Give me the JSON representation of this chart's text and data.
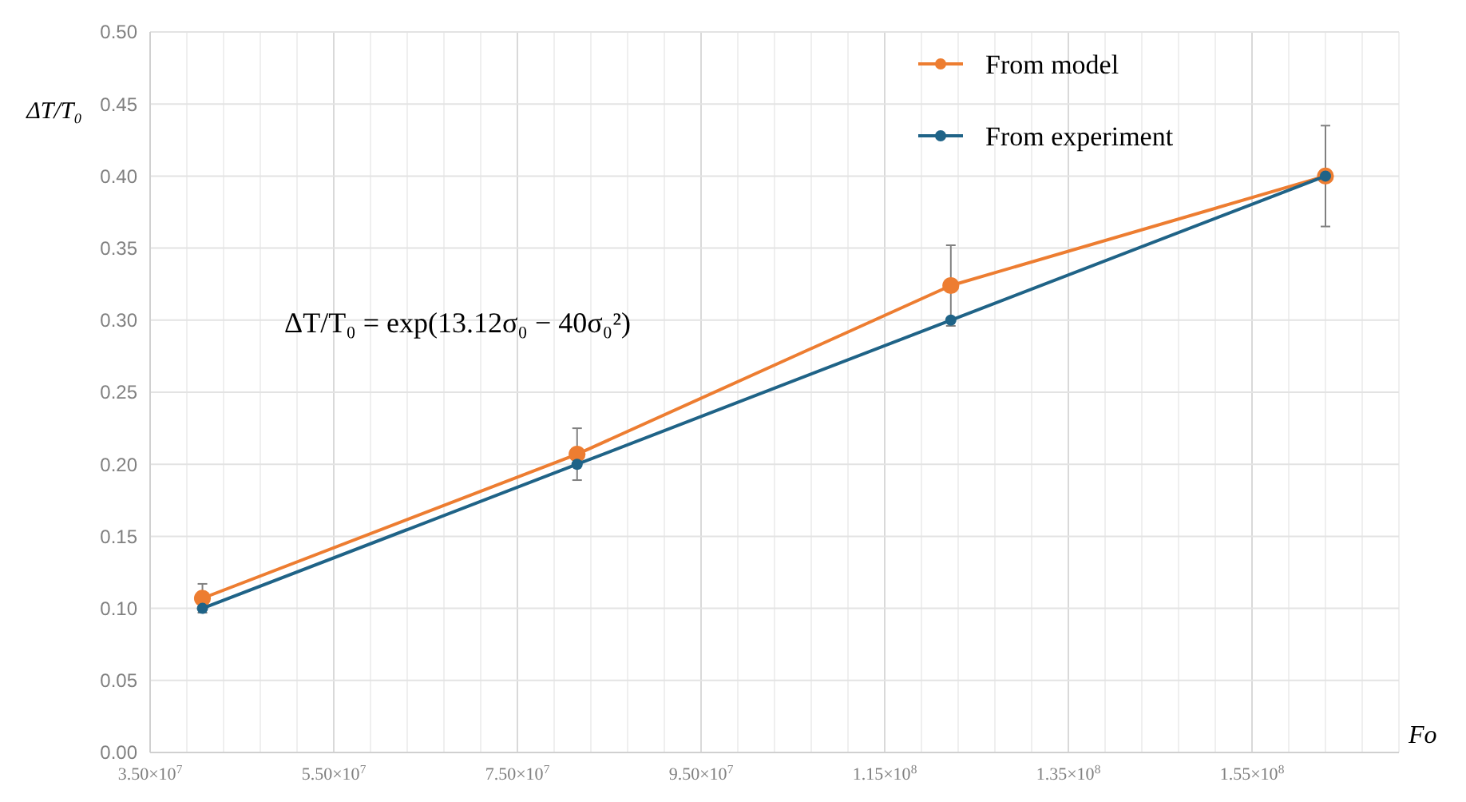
{
  "chart_data": {
    "type": "line",
    "xlabel": "Fo",
    "ylabel": "ΔT/T₀",
    "x": [
      40700000,
      81500000,
      122200000,
      163000000
    ],
    "series": [
      {
        "name": "From  model",
        "color": "#ed7d31",
        "values": [
          0.107,
          0.207,
          0.324,
          0.4
        ],
        "errors": [
          0.01,
          0.018,
          0.028,
          0.035
        ]
      },
      {
        "name": "From  experiment",
        "color": "#1f6387",
        "values": [
          0.1,
          0.2,
          0.3,
          0.4
        ]
      }
    ],
    "xlim": [
      35000000,
      171000000
    ],
    "xticks": [
      {
        "value": 35000000,
        "label": "3.50×10$^{7}$"
      },
      {
        "value": 55000000,
        "label": "5.50×10$^{7}$"
      },
      {
        "value": 75000000,
        "label": "7.50×10$^{7}$"
      },
      {
        "value": 95000000,
        "label": "9.50×10$^{7}$"
      },
      {
        "value": 115000000,
        "label": "1.15×10$^{8}$"
      },
      {
        "value": 135000000,
        "label": "1.35×10$^{8}$"
      },
      {
        "value": 155000000,
        "label": "1.55×10$^{8}$"
      }
    ],
    "ylim": [
      0,
      0.5
    ],
    "yticks": [
      {
        "value": 0,
        "label": "0.00"
      },
      {
        "value": 0.05,
        "label": "0.05"
      },
      {
        "value": 0.1,
        "label": "0.10"
      },
      {
        "value": 0.15,
        "label": "0.15"
      },
      {
        "value": 0.2,
        "label": "0.20"
      },
      {
        "value": 0.25,
        "label": "0.25"
      },
      {
        "value": 0.3,
        "label": "0.30"
      },
      {
        "value": 0.35,
        "label": "0.35"
      },
      {
        "value": 0.4,
        "label": "0.40"
      },
      {
        "value": 0.45,
        "label": "0.45"
      },
      {
        "value": 0.5,
        "label": "0.50"
      }
    ],
    "annotations": [
      "ΔT/T₀ = exp(13.12σ₀ − 40σ₀²)"
    ],
    "grid": true,
    "legend": "top",
    "marker": "circle",
    "line_style": "solid"
  }
}
